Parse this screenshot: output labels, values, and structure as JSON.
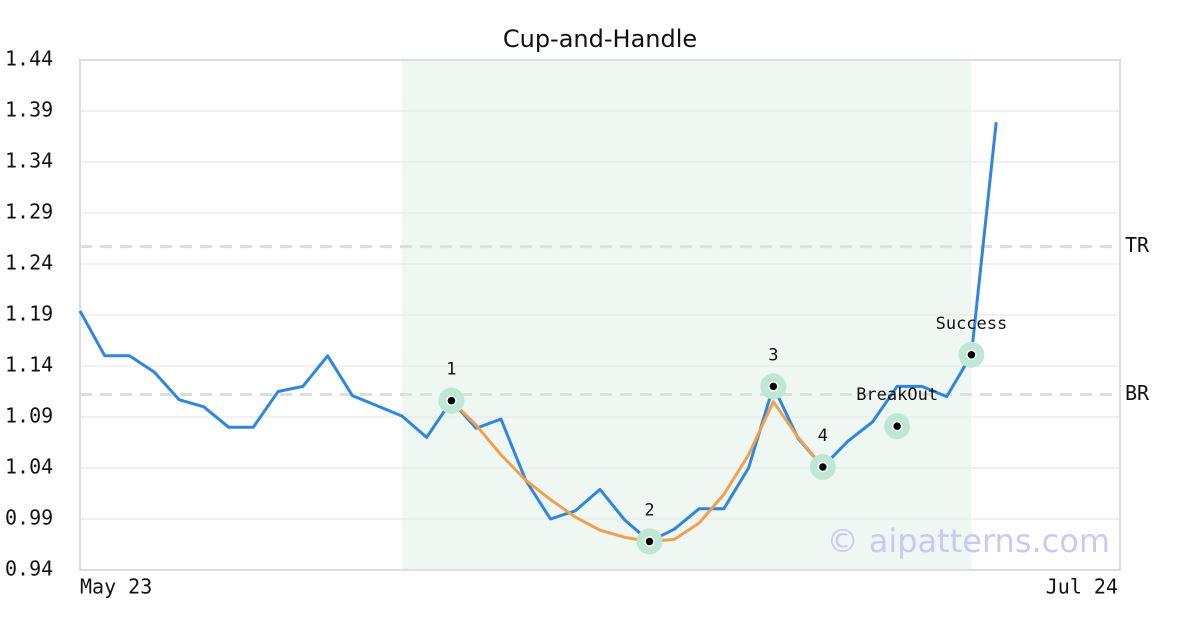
{
  "chart_data": {
    "type": "line",
    "title": "Cup-and-Handle",
    "watermark": "© aipatterns.com",
    "categories": [
      "May 23",
      null,
      null,
      null,
      null,
      null,
      null,
      null,
      null,
      null,
      null,
      null,
      null,
      null,
      null,
      null,
      null,
      null,
      null,
      null,
      null,
      null,
      null,
      null,
      null,
      null,
      null,
      null,
      null,
      null,
      null,
      null,
      null,
      null,
      null,
      null,
      null,
      null,
      null,
      null,
      null,
      null,
      "Jul 24"
    ],
    "series": [
      {
        "color": "#2e86de",
        "values": [
          1.194,
          1.15,
          1.15,
          1.134,
          1.107,
          1.1,
          1.08,
          1.08,
          1.115,
          1.12,
          1.15,
          1.111,
          1.101,
          1.091,
          1.07,
          1.106,
          1.079,
          1.088,
          1.028,
          0.99,
          0.998,
          1.019,
          0.989,
          0.968,
          0.98,
          1.0,
          1.0,
          1.04,
          1.12,
          1.069,
          1.041,
          1.066,
          1.085,
          1.12,
          1.12,
          1.11,
          1.151,
          1.379,
          null,
          null,
          null,
          null,
          null
        ]
      },
      {
        "color": "#f0a050",
        "values": [
          null,
          null,
          null,
          null,
          null,
          null,
          null,
          null,
          null,
          null,
          null,
          null,
          null,
          null,
          null,
          1.106,
          1.082,
          1.053,
          1.028,
          1.009,
          0.992,
          0.979,
          0.972,
          0.968,
          0.97,
          0.986,
          1.014,
          1.053,
          1.105,
          1.07,
          1.041,
          null,
          null,
          null,
          null,
          null,
          null,
          null,
          null,
          null,
          null,
          null,
          null
        ]
      }
    ],
    "annotations": [
      {
        "label": "1",
        "index": 15,
        "value": 1.106
      },
      {
        "label": "2",
        "index": 23,
        "value": 0.968
      },
      {
        "label": "3",
        "index": 28,
        "value": 1.12
      },
      {
        "label": "4",
        "index": 30,
        "value": 1.041
      },
      {
        "label": "BreakOut",
        "index": 33,
        "value": 1.081
      },
      {
        "label": "Success",
        "index": 36,
        "value": 1.151
      }
    ],
    "reference_lines": [
      {
        "label": "TR",
        "value": 1.257
      },
      {
        "label": "BR",
        "value": 1.112
      }
    ],
    "shaded_range": [
      13,
      36
    ],
    "ylim": [
      0.94,
      1.44
    ],
    "yticks": [
      0.94,
      0.99,
      1.04,
      1.09,
      1.14,
      1.19,
      1.24,
      1.29,
      1.34,
      1.39,
      1.44
    ],
    "grid": true
  }
}
